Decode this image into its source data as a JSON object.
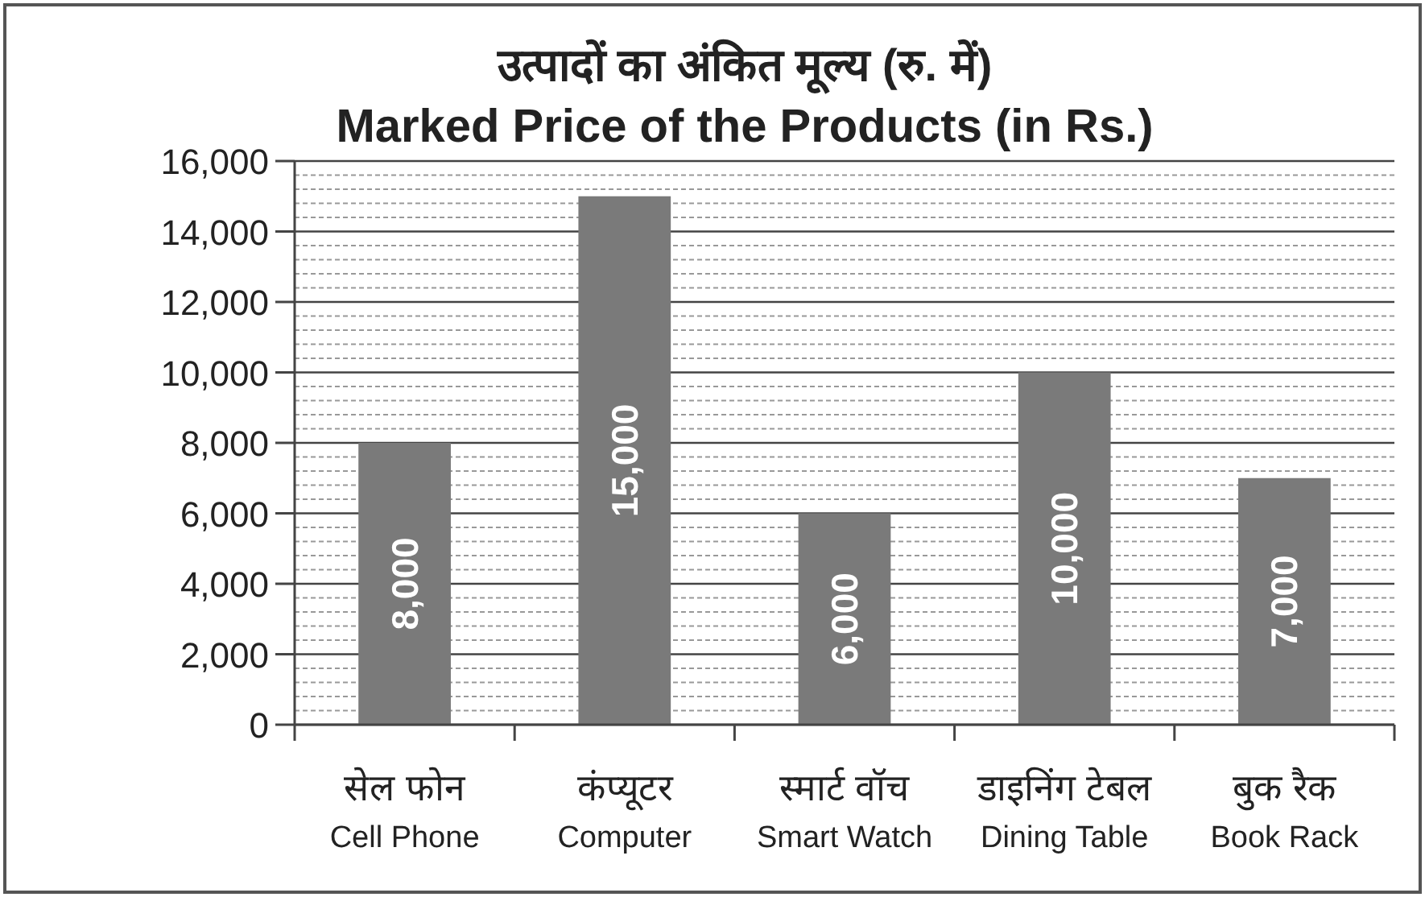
{
  "chart_data": {
    "type": "bar",
    "title": "उत्पादों का अंकित मूल्य (रु. में)",
    "subtitle": "Marked Price of the Products (in Rs.)",
    "categories": [
      "सेल फोन\nCell Phone",
      "कंप्यूटर\nComputer",
      "स्मार्ट वॉच\nSmart Watch",
      "डाइनिंग टेबल\nDining Table",
      "बुक रैक\nBook Rack"
    ],
    "values": [
      8000,
      15000,
      6000,
      10000,
      7000
    ],
    "value_labels": [
      "8,000",
      "15,000",
      "6,000",
      "10,000",
      "7,000"
    ],
    "color": "#7a7a7a",
    "ylim": [
      0,
      16000
    ],
    "yticks": [
      0,
      {
        "value": 2000,
        "label": "2,000"
      },
      {
        "value": 4000,
        "label": "4,000"
      },
      {
        "value": 6000,
        "label": "6,000"
      },
      {
        "value": 8000,
        "label": "8,000"
      },
      {
        "value": 10000,
        "label": "10,000"
      },
      {
        "value": 12000,
        "label": "12,000"
      },
      {
        "value": 14000,
        "label": "14,000"
      },
      {
        "value": 16000,
        "label": "16,000"
      }
    ],
    "grid": "y"
  }
}
